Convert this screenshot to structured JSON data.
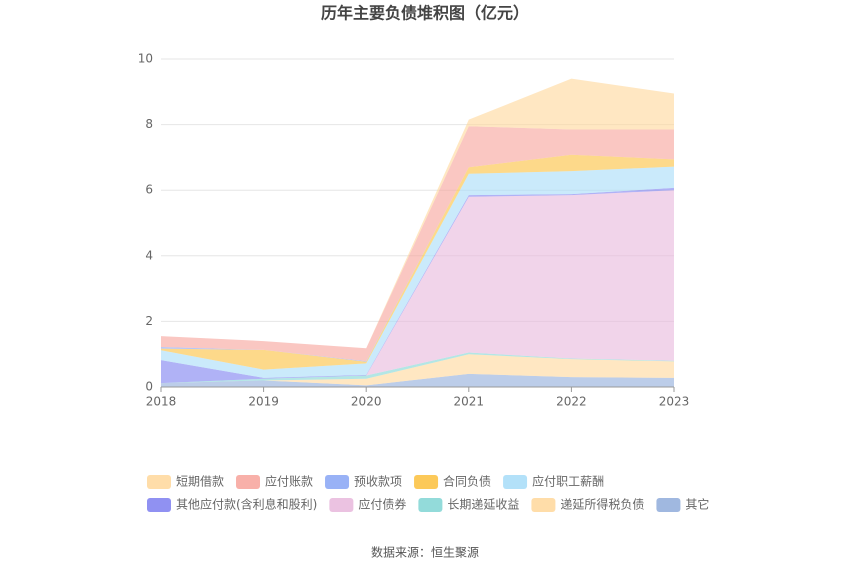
{
  "chart_data": {
    "type": "stacked_area",
    "title": "历年主要负债堆积图（亿元）",
    "source": "数据来源：恒生聚源",
    "categories": [
      "2018",
      "2019",
      "2020",
      "2021",
      "2022",
      "2023"
    ],
    "ylim": [
      0,
      10
    ],
    "yticks": [
      0,
      2,
      4,
      6,
      8,
      10
    ],
    "grid": true,
    "series": [
      {
        "name": "短期借款",
        "color": "#ffd79a",
        "values": [
          0,
          0,
          0,
          0.2,
          1.55,
          1.1
        ]
      },
      {
        "name": "应付账款",
        "color": "#f7a29a",
        "values": [
          0.33,
          0.27,
          0.39,
          1.25,
          0.77,
          0.91
        ]
      },
      {
        "name": "预收款项",
        "color": "#87a4f4",
        "values": [
          0.05,
          0,
          0.02,
          0,
          0,
          0
        ]
      },
      {
        "name": "合同负债",
        "color": "#fbbf3c",
        "values": [
          0.05,
          0.6,
          0.05,
          0.2,
          0.5,
          0.22
        ]
      },
      {
        "name": "应付职工薪酬",
        "color": "#a6dcf8",
        "values": [
          0.3,
          0.25,
          0.35,
          0.65,
          0.7,
          0.65
        ]
      },
      {
        "name": "其他应付款(含利息和股利)",
        "color": "#7c7ef0",
        "values": [
          0.7,
          0.03,
          0.02,
          0.05,
          0.03,
          0.07
        ]
      },
      {
        "name": "应付债券",
        "color": "#e7b7dc",
        "values": [
          0,
          0,
          0,
          4.75,
          4.98,
          5.2
        ]
      },
      {
        "name": "长期递延收益",
        "color": "#80d5d3",
        "values": [
          0,
          0.05,
          0.1,
          0.05,
          0.02,
          0.02
        ]
      },
      {
        "name": "递延所得税负债",
        "color": "#ffd79a",
        "values": [
          0,
          0,
          0.2,
          0.6,
          0.55,
          0.5
        ]
      },
      {
        "name": "其它",
        "color": "#8fabdb",
        "values": [
          0.12,
          0.2,
          0.05,
          0.4,
          0.3,
          0.28
        ]
      }
    ]
  }
}
